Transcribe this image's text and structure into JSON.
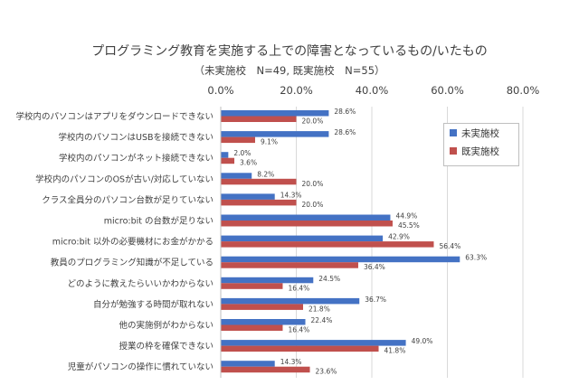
{
  "chart_data": {
    "type": "bar",
    "orientation": "horizontal",
    "title": "プログラミング教育を実施する上での障害となっているもの/いたもの",
    "subtitle": "（未実施校　N=49, 既実施校　N=55）",
    "xlim": [
      0,
      80
    ],
    "xticks": [
      "0.0%",
      "20.0%",
      "40.0%",
      "60.0%",
      "80.0%"
    ],
    "xtick_values": [
      0,
      20,
      40,
      60,
      80
    ],
    "grid": "vertical",
    "legend_position": "right",
    "categories": [
      "学校内のパソコンはアプリをダウンロードできない",
      "学校内のパソコンはUSBを接続できない",
      "学校内のパソコンがネット接続できない",
      "学校内のパソコンのOSが古い/対応していない",
      "クラス全員分のパソコン台数が足りていない",
      "micro:bit の台数が足りない",
      "micro:bit 以外の必要機材にお金がかかる",
      "教員のプログラミング知識が不足している",
      "どのように教えたらいいかわからない",
      "自分が勉強する時間が取れない",
      "他の実施例がわからない",
      "授業の枠を確保できない",
      "児童がパソコンの操作に慣れていない"
    ],
    "series": [
      {
        "name": "未実施校",
        "color": "#4472c4",
        "values": [
          28.6,
          28.6,
          2.0,
          8.2,
          14.3,
          44.9,
          42.9,
          63.3,
          24.5,
          36.7,
          22.4,
          49.0,
          14.3
        ],
        "labels": [
          "28.6%",
          "28.6%",
          "2.0%",
          "8.2%",
          "14.3%",
          "44.9%",
          "42.9%",
          "63.3%",
          "24.5%",
          "36.7%",
          "22.4%",
          "49.0%",
          "14.3%"
        ]
      },
      {
        "name": "既実施校",
        "color": "#c0504d",
        "values": [
          20.0,
          9.1,
          3.6,
          20.0,
          20.0,
          45.5,
          56.4,
          36.4,
          16.4,
          21.8,
          16.4,
          41.8,
          23.6
        ],
        "labels": [
          "20.0%",
          "9.1%",
          "3.6%",
          "20.0%",
          "20.0%",
          "45.5%",
          "56.4%",
          "36.4%",
          "16.4%",
          "21.8%",
          "16.4%",
          "41.8%",
          "23.6%"
        ]
      }
    ]
  }
}
